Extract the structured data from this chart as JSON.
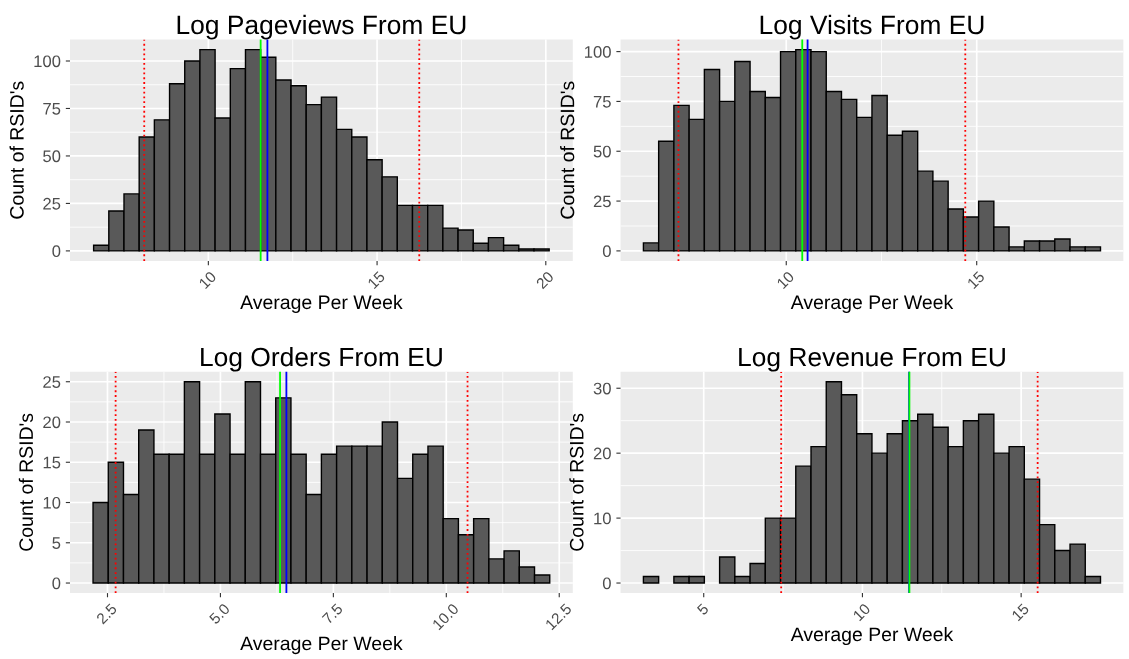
{
  "chart_data": [
    {
      "type": "histogram",
      "title": "Log Pageviews From EU",
      "xlabel": "Average Per Week",
      "ylabel": "Count of RSID's",
      "color": "#595959",
      "grid": true,
      "bins": [
        6.6,
        7.05,
        7.5,
        7.95,
        8.4,
        8.85,
        9.3,
        9.75,
        10.2,
        10.65,
        11.1,
        11.55,
        12.0,
        12.45,
        12.9,
        13.35,
        13.8,
        14.25,
        14.7,
        15.15,
        15.6,
        16.05,
        16.5,
        16.95,
        17.4,
        17.85,
        18.3,
        18.75,
        19.2,
        19.65,
        20.1
      ],
      "values": [
        3,
        21,
        30,
        60,
        69,
        88,
        100,
        106,
        70,
        96,
        106,
        102,
        90,
        87,
        77,
        81,
        64,
        60,
        48,
        39,
        24,
        24,
        24,
        12,
        11,
        4,
        7,
        3,
        1,
        1
      ],
      "xlim": [
        5.9,
        20.8
      ],
      "xticks": [
        10,
        15,
        20
      ],
      "ylim": [
        -5.3,
        111.3
      ],
      "yticks": [
        0,
        25,
        50,
        75,
        100
      ],
      "ref_lines": [
        {
          "axis": "x",
          "value": 8.1,
          "color": "#ff0000",
          "line_style": "dotted"
        },
        {
          "axis": "x",
          "value": 16.25,
          "color": "#ff0000",
          "line_style": "dotted"
        },
        {
          "axis": "x",
          "value": 11.55,
          "color": "#00ff00",
          "line_style": "solid"
        },
        {
          "axis": "x",
          "value": 11.75,
          "color": "#0000ff",
          "line_style": "solid"
        }
      ]
    },
    {
      "type": "histogram",
      "title": "Log Visits From EU",
      "xlabel": "Average Per Week",
      "ylabel": "Count of RSID's",
      "color": "#595959",
      "grid": true,
      "bins": [
        6.25,
        6.65,
        7.05,
        7.45,
        7.85,
        8.25,
        8.65,
        9.05,
        9.45,
        9.85,
        10.25,
        10.65,
        11.05,
        11.45,
        11.85,
        12.25,
        12.65,
        13.05,
        13.45,
        13.85,
        14.25,
        14.65,
        15.05,
        15.45,
        15.85,
        16.25,
        16.65,
        17.05,
        17.45,
        17.85,
        18.25
      ],
      "values": [
        4,
        55,
        73,
        66,
        91,
        75,
        95,
        80,
        77,
        100,
        101,
        100,
        80,
        76,
        67,
        78,
        58,
        60,
        40,
        35,
        21,
        17,
        25,
        12,
        2,
        5,
        5,
        6,
        2,
        2
      ],
      "xlim": [
        5.65,
        18.85
      ],
      "xticks": [
        10,
        15
      ],
      "ylim": [
        -5.05,
        106.05
      ],
      "yticks": [
        0,
        25,
        50,
        75,
        100
      ],
      "ref_lines": [
        {
          "axis": "x",
          "value": 7.17,
          "color": "#ff0000",
          "line_style": "dotted"
        },
        {
          "axis": "x",
          "value": 14.7,
          "color": "#ff0000",
          "line_style": "dotted"
        },
        {
          "axis": "x",
          "value": 10.42,
          "color": "#00ff00",
          "line_style": "solid"
        },
        {
          "axis": "x",
          "value": 10.56,
          "color": "#0000ff",
          "line_style": "solid"
        }
      ]
    },
    {
      "type": "histogram",
      "title": "Log Orders From EU",
      "xlabel": "Average Per Week",
      "ylabel": "Count of RSID's",
      "color": "#595959",
      "grid": true,
      "bins": [
        2.18,
        2.517,
        2.854,
        3.191,
        3.528,
        3.865,
        4.202,
        4.539,
        4.876,
        5.213,
        5.55,
        5.887,
        6.224,
        6.561,
        6.898,
        7.235,
        7.572,
        7.909,
        8.246,
        8.583,
        8.92,
        9.257,
        9.594,
        9.931,
        10.268,
        10.605,
        10.942,
        11.279,
        11.616,
        11.953,
        12.29
      ],
      "values": [
        10,
        15,
        11,
        19,
        16,
        16,
        25,
        16,
        21,
        16,
        25,
        16,
        23,
        16,
        11,
        16,
        17,
        17,
        17,
        20,
        13,
        16,
        17,
        8,
        6,
        8,
        3,
        4,
        2,
        1
      ],
      "xlim": [
        1.67,
        12.8
      ],
      "xticks": [
        {
          "value": 2.5,
          "label": "2.5"
        },
        {
          "value": 5,
          "label": "5.0"
        },
        {
          "value": 7.5,
          "label": "7.5"
        },
        {
          "value": 10,
          "label": "10.0"
        },
        {
          "value": 12.5,
          "label": "12.5"
        }
      ],
      "ylim": [
        -1.25,
        26.25
      ],
      "yticks": [
        0,
        5,
        10,
        15,
        20,
        25
      ],
      "ref_lines": [
        {
          "axis": "x",
          "value": 2.68,
          "color": "#ff0000",
          "line_style": "dotted"
        },
        {
          "axis": "x",
          "value": 10.47,
          "color": "#ff0000",
          "line_style": "dotted"
        },
        {
          "axis": "x",
          "value": 6.32,
          "color": "#00ff00",
          "line_style": "solid"
        },
        {
          "axis": "x",
          "value": 6.46,
          "color": "#0000ff",
          "line_style": "solid"
        }
      ]
    },
    {
      "type": "histogram",
      "title": "Log Revenue From EU",
      "xlabel": "Average Per Week",
      "ylabel": "Count of RSID's",
      "color": "#595959",
      "grid": true,
      "bins": [
        3.1,
        3.58,
        4.06,
        4.54,
        5.02,
        5.5,
        5.98,
        6.46,
        6.94,
        7.42,
        7.9,
        8.38,
        8.86,
        9.34,
        9.82,
        10.3,
        10.78,
        11.26,
        11.74,
        12.22,
        12.7,
        13.18,
        13.66,
        14.14,
        14.62,
        15.1,
        15.58,
        16.06,
        16.54,
        17.02,
        17.5
      ],
      "values": [
        1,
        0,
        1,
        1,
        0,
        4,
        1,
        3,
        10,
        10,
        18,
        21,
        31,
        29,
        23,
        20,
        23,
        25,
        26,
        24,
        21,
        25,
        26,
        20,
        21,
        16,
        9,
        5,
        6,
        1
      ],
      "xlim": [
        2.38,
        18.22
      ],
      "xticks": [
        5,
        10,
        15
      ],
      "ylim": [
        -1.55,
        32.55
      ],
      "yticks": [
        0,
        10,
        20,
        30
      ],
      "ref_lines": [
        {
          "axis": "x",
          "value": 7.44,
          "color": "#ff0000",
          "line_style": "dotted"
        },
        {
          "axis": "x",
          "value": 15.52,
          "color": "#ff0000",
          "line_style": "dotted"
        },
        {
          "axis": "x",
          "value": 11.47,
          "color": "#0000ff",
          "line_style": "solid"
        },
        {
          "axis": "x",
          "value": 11.48,
          "color": "#00ff00",
          "line_style": "solid"
        }
      ]
    }
  ]
}
